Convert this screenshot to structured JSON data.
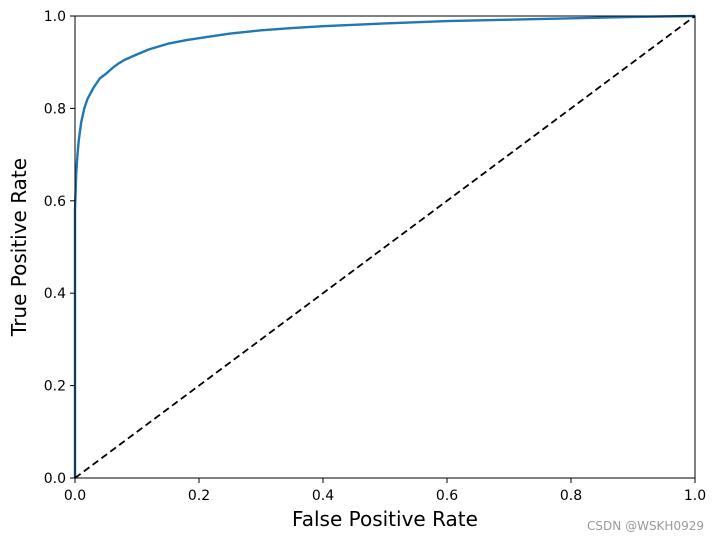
{
  "chart_data": {
    "type": "line",
    "title": "",
    "xlabel": "False Positive Rate",
    "ylabel": "True Positive Rate",
    "xlim": [
      0.0,
      1.0
    ],
    "ylim": [
      0.0,
      1.0
    ],
    "grid": false,
    "xticks": [
      "0.0",
      "0.2",
      "0.4",
      "0.6",
      "0.8",
      "1.0"
    ],
    "yticks": [
      "0.0",
      "0.2",
      "0.4",
      "0.6",
      "0.8",
      "1.0"
    ],
    "series": [
      {
        "color": "#1f77b4",
        "line_style": "solid",
        "x": [
          0.0,
          0.0,
          0.002,
          0.004,
          0.006,
          0.008,
          0.01,
          0.015,
          0.02,
          0.03,
          0.04,
          0.05,
          0.06,
          0.07,
          0.08,
          0.1,
          0.12,
          0.15,
          0.18,
          0.2,
          0.25,
          0.3,
          0.35,
          0.4,
          0.5,
          0.6,
          0.7,
          0.8,
          0.9,
          1.0
        ],
        "y": [
          0.0,
          0.58,
          0.66,
          0.7,
          0.73,
          0.75,
          0.77,
          0.8,
          0.82,
          0.845,
          0.865,
          0.875,
          0.887,
          0.897,
          0.905,
          0.917,
          0.928,
          0.94,
          0.948,
          0.952,
          0.962,
          0.969,
          0.974,
          0.978,
          0.984,
          0.989,
          0.992,
          0.995,
          0.998,
          1.0
        ]
      },
      {
        "color": "#000000",
        "line_style": "dashed",
        "x": [
          0.0,
          1.0
        ],
        "y": [
          0.0,
          1.0
        ]
      }
    ]
  },
  "watermark": "CSDN @WSKH0929"
}
